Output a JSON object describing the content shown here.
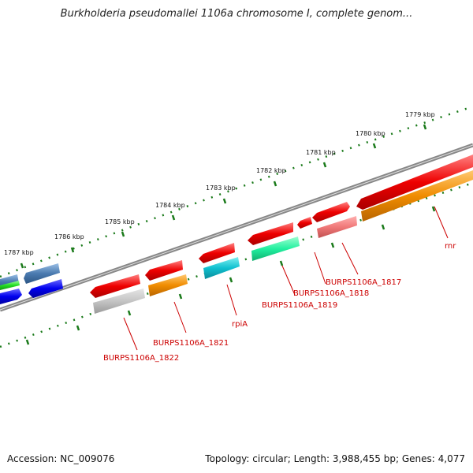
{
  "title": "Burkholderia pseudomallei 1106a chromosome I, complete genom...",
  "footer": {
    "accession_label": "Accession:",
    "accession": "NC_009076",
    "topology_label": "Topology:",
    "topology": "circular",
    "length_label": "Length:",
    "length": "3,988,455 bp",
    "genes_label": "Genes:",
    "genes": "4,077"
  },
  "colors": {
    "backbone": "#777777",
    "ticks": "#1a7a1a",
    "label": "#cc0000"
  },
  "kbp_ticks": [
    {
      "pos": 1779,
      "label": "1779 kbp"
    },
    {
      "pos": 1780,
      "label": "1780 kbp"
    },
    {
      "pos": 1781,
      "label": "1781 kbp"
    },
    {
      "pos": 1782,
      "label": "1782 kbp"
    },
    {
      "pos": 1783,
      "label": "1783 kbp"
    },
    {
      "pos": 1784,
      "label": "1784 kbp"
    },
    {
      "pos": 1785,
      "label": "1785 kbp"
    },
    {
      "pos": 1786,
      "label": "1786 kbp"
    },
    {
      "pos": 1787,
      "label": "1787 kbp"
    }
  ],
  "gene_labels": [
    {
      "name": "rnr"
    },
    {
      "name": "BURPS1106A_1817"
    },
    {
      "name": "BURPS1106A_1818"
    },
    {
      "name": "BURPS1106A_1819"
    },
    {
      "name": "rpiA"
    },
    {
      "name": "BURPS1106A_1821"
    },
    {
      "name": "BURPS1106A_1822"
    }
  ]
}
